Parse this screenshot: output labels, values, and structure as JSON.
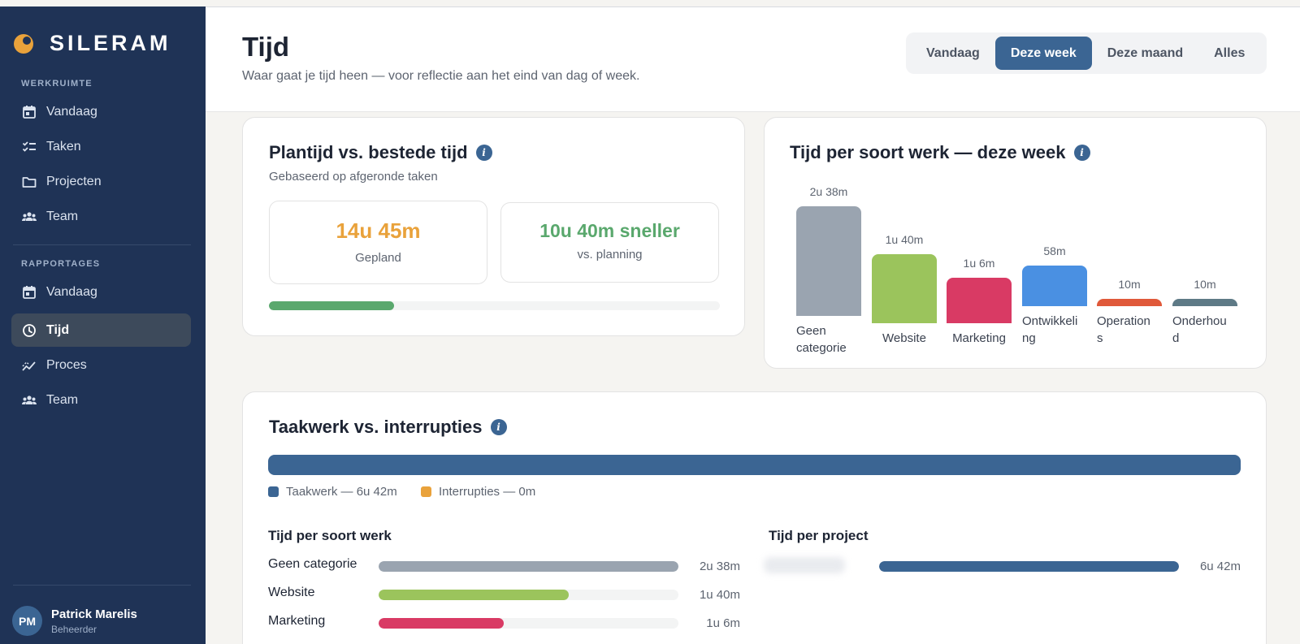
{
  "brand": {
    "name": "SILERAM"
  },
  "sidebar": {
    "workspace_label": "WERKRUIMTE",
    "workspace_items": [
      {
        "label": "Vandaag",
        "icon": "calendar-icon"
      },
      {
        "label": "Taken",
        "icon": "checklist-icon"
      },
      {
        "label": "Projecten",
        "icon": "folder-icon"
      },
      {
        "label": "Team",
        "icon": "people-icon"
      }
    ],
    "reports_label": "RAPPORTAGES",
    "report_items": [
      {
        "label": "Vandaag",
        "icon": "calendar-icon"
      },
      {
        "label": "Tijd",
        "icon": "clock-icon",
        "active": true
      },
      {
        "label": "Proces",
        "icon": "trend-icon"
      },
      {
        "label": "Team",
        "icon": "people-icon"
      }
    ],
    "user": {
      "initials": "PM",
      "name": "Patrick Marelis",
      "role": "Beheerder"
    }
  },
  "header": {
    "title": "Tijd",
    "subtitle": "Waar gaat je tijd heen — voor reflectie aan het eind van dag of week.",
    "ranges": [
      "Vandaag",
      "Deze week",
      "Deze maand",
      "Alles"
    ],
    "active_range": "Deze week"
  },
  "plan_card": {
    "title": "Plantijd vs. bestede tijd",
    "subtitle": "Gebaseerd op afgeronde taken",
    "planned_value": "14u 45m",
    "planned_label": "Gepland",
    "diff_value": "10u 40m sneller",
    "diff_label": "vs. planning",
    "progress_fraction": 0.277,
    "colors": {
      "planned": "#e9a23b",
      "diff": "#5aa86d",
      "progress": "#5aa86d"
    }
  },
  "chart_data": {
    "type": "bar",
    "title": "Tijd per soort werk — deze week",
    "categories": [
      "Geen categorie",
      "Website",
      "Marketing",
      "Ontwikkeling",
      "Operations",
      "Onderhoud"
    ],
    "display_categories": [
      "Geen\ncategorie",
      "Website",
      "Marketing",
      "Ontwikkeli\nng",
      "Operation\ns",
      "Onderhou\nd"
    ],
    "values_minutes": [
      158,
      100,
      66,
      58,
      10,
      10
    ],
    "labels": [
      "2u 38m",
      "1u 40m",
      "1u 6m",
      "58m",
      "10m",
      "10m"
    ],
    "colors": [
      "#9aa4b0",
      "#9bc45c",
      "#d93a64",
      "#4a90e2",
      "#e0593a",
      "#5e7a86"
    ],
    "ylim": [
      0,
      158
    ]
  },
  "interrupt_card": {
    "title": "Taakwerk vs. interrupties",
    "legend": [
      {
        "label": "Taakwerk — 6u 42m",
        "color": "#3b6593"
      },
      {
        "label": "Interrupties — 0m",
        "color": "#e9a23b"
      }
    ],
    "task_fraction": 1.0,
    "work_type_heading": "Tijd per soort werk",
    "work_types": [
      {
        "label": "Geen categorie",
        "value": "2u 38m",
        "fraction": 1.0,
        "color": "#9aa4b0"
      },
      {
        "label": "Website",
        "value": "1u 40m",
        "fraction": 0.633,
        "color": "#9bc45c"
      },
      {
        "label": "Marketing",
        "value": "1u 6m",
        "fraction": 0.418,
        "color": "#d93a64"
      }
    ],
    "project_heading": "Tijd per project",
    "projects": [
      {
        "value": "6u 42m",
        "fraction": 1.0,
        "color": "#3b6593"
      }
    ]
  }
}
